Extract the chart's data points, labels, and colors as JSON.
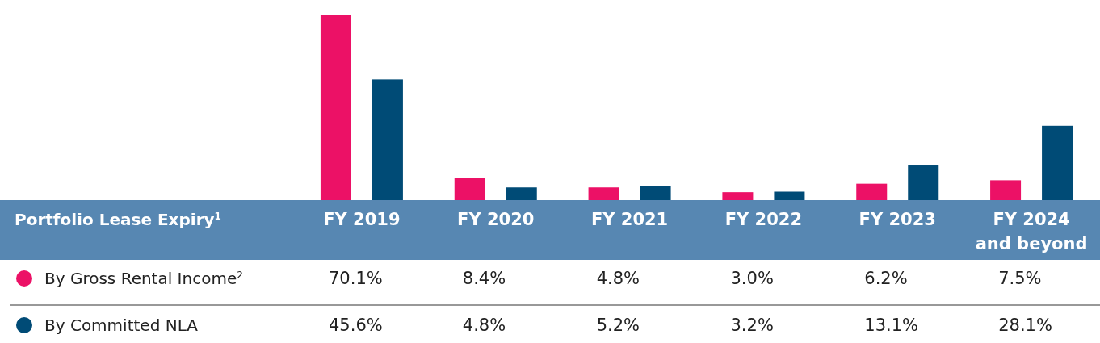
{
  "chart_data": {
    "type": "bar",
    "title": "Portfolio Lease Expiry$^{1}$",
    "categories": [
      "FY 2019",
      "FY 2020",
      "FY 2021",
      "FY 2022",
      "FY 2023",
      "FY 2024\nand beyond"
    ],
    "series": [
      {
        "name": "By Gross Rental Income$^{2}$",
        "color": "#ec1166",
        "values": [
          70.1,
          8.4,
          4.8,
          3.0,
          6.2,
          7.5
        ],
        "value_labels": [
          "70.1%",
          "8.4%",
          "4.8%",
          "3.0%",
          "6.2%",
          "7.5%"
        ]
      },
      {
        "name": "By Committed NLA",
        "color": "#004b76",
        "values": [
          45.6,
          4.8,
          5.2,
          3.2,
          13.1,
          28.1
        ],
        "value_labels": [
          "45.6%",
          "4.8%",
          "5.2%",
          "3.2%",
          "13.1%",
          "28.1%"
        ]
      }
    ],
    "legend": "bottom left"
  }
}
